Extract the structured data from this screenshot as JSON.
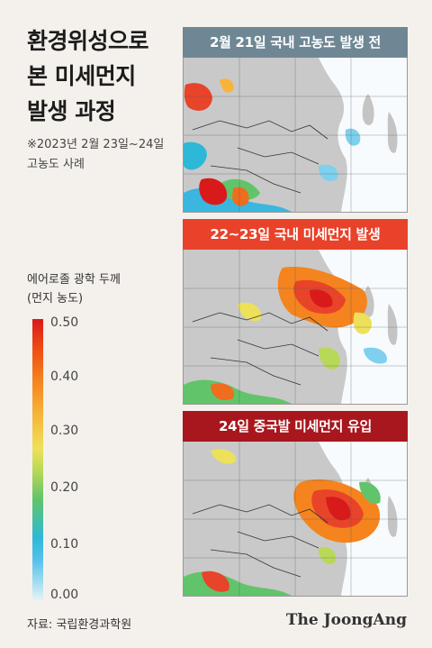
{
  "title_lines": [
    "환경위성으로",
    "본 미세먼지",
    "발생 과정"
  ],
  "subtitle_lines": [
    "※2023년 2월 23일~24일",
    "고농도 사례"
  ],
  "legend": {
    "title_lines": [
      "에어로졸 광학 두께",
      "(먼지 농도)"
    ],
    "ticks": [
      "0.50",
      "0.40",
      "0.30",
      "0.20",
      "0.10",
      "0.00"
    ],
    "max_color": "#d91a1a",
    "min_color": "#e4f3f7"
  },
  "panels": [
    {
      "label": "2월 21일 국내 고농도 발생 전",
      "header_color": "#6f8794",
      "pollution_level": "low"
    },
    {
      "label": "22~23일 국내 미세먼지 발생",
      "header_color": "#e8422a",
      "pollution_level": "medium"
    },
    {
      "label": "24일 중국발 미세먼지 유입",
      "header_color": "#a8171d",
      "pollution_level": "high"
    }
  ],
  "source": "자료: 국립환경과학원",
  "brand": "The JoongAng"
}
